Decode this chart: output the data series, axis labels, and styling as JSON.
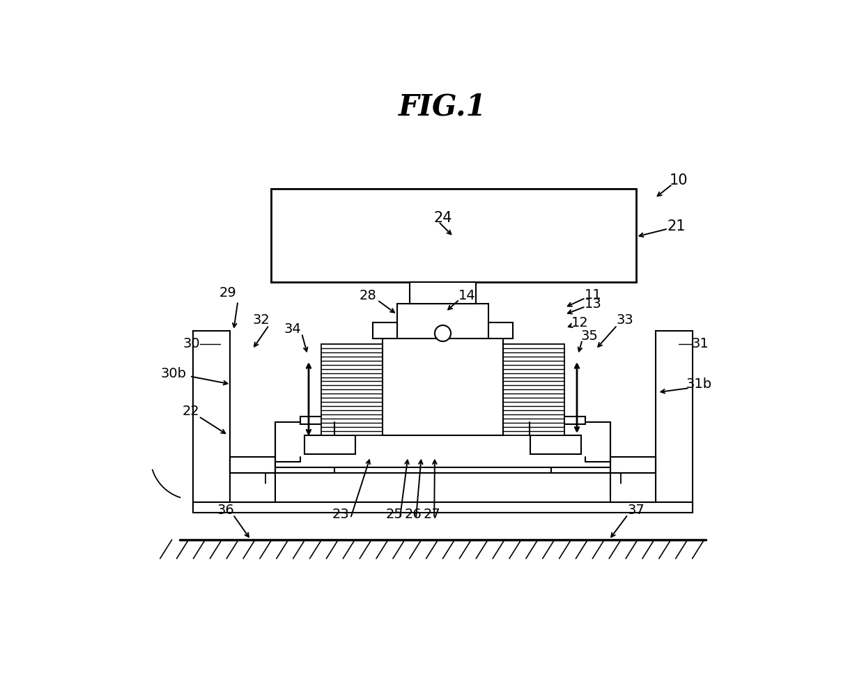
{
  "title": "FIG.1",
  "bg_color": "#ffffff",
  "fig_width": 12.4,
  "fig_height": 9.72,
  "dpi": 100
}
